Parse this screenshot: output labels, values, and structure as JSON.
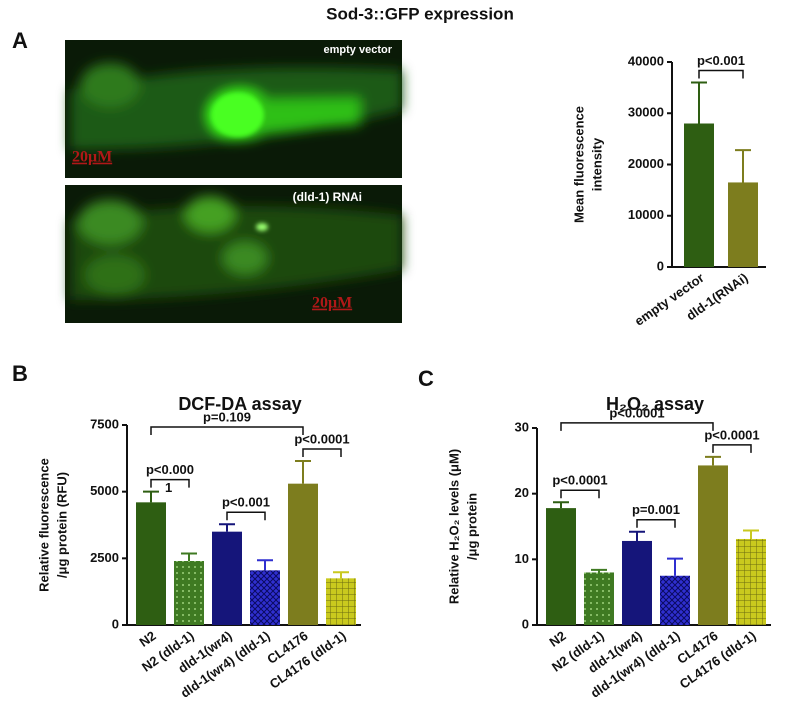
{
  "figure": {
    "title": "Sod-3::GFP expression",
    "panels": [
      "A",
      "B",
      "C"
    ],
    "images": [
      {
        "label": "empty vector",
        "scale": "20μM"
      },
      {
        "label": "(dld-1) RNAi",
        "scale": "20μM"
      }
    ]
  },
  "chart_data": [
    {
      "type": "bar",
      "ylabel": [
        "Mean fluorescence",
        "intensity"
      ],
      "categories": [
        "empty vector",
        "dld-1(RNAi)"
      ],
      "values": [
        28000,
        16500
      ],
      "errors": [
        8000,
        6300
      ],
      "colors": [
        "#2e5e12",
        "#7d7d1e"
      ],
      "patterns": [
        "none",
        "none"
      ],
      "ylim": [
        0,
        40000
      ],
      "yticks": [
        0,
        10000,
        20000,
        30000,
        40000
      ],
      "annotations": [
        {
          "text": [
            "p<0.001"
          ],
          "from": 0,
          "to": 1
        }
      ]
    },
    {
      "type": "bar",
      "title": "DCF-DA assay",
      "ylabel": [
        "Relative fluorescence",
        "/μg protein (RFU)"
      ],
      "categories": [
        "N2",
        "N2 (dld-1)",
        "dld-1(wr4)",
        "dld-1(wr4) (dld-1)",
        "CL4176",
        "CL4176 (dld-1)"
      ],
      "values": [
        4600,
        2400,
        3500,
        2050,
        5300,
        1750
      ],
      "errors": [
        400,
        280,
        280,
        380,
        850,
        230
      ],
      "colors": [
        "#2e5e12",
        "#3f7a22",
        "#15157a",
        "#2f2fd0",
        "#7d7d1e",
        "#c9c91e"
      ],
      "patterns": [
        "none",
        "dots",
        "none",
        "cross",
        "none",
        "grid"
      ],
      "ylim": [
        0,
        7500
      ],
      "yticks": [
        0,
        2500,
        5000,
        7500
      ],
      "annotations": [
        {
          "text": [
            "p=0.109"
          ],
          "from": 0,
          "to": 4
        },
        {
          "text": [
            "p<0.000",
            "1"
          ],
          "from": 0,
          "to": 1
        },
        {
          "text": [
            "p<0.001"
          ],
          "from": 2,
          "to": 3
        },
        {
          "text": [
            "p<0.0001"
          ],
          "from": 4,
          "to": 5
        }
      ]
    },
    {
      "type": "bar",
      "title": "H₂O₂ assay",
      "ylabel": [
        "Relative H₂O₂ levels (μM)",
        "/μg protein"
      ],
      "categories": [
        "N2",
        "N2 (dld-1)",
        "dld-1(wr4)",
        "dld-1(wr4) (dld-1)",
        "CL4176",
        "CL4176 (dld-1)"
      ],
      "values": [
        17.8,
        8.0,
        12.8,
        7.5,
        24.3,
        13.1
      ],
      "errors": [
        0.9,
        0.4,
        1.4,
        2.6,
        1.3,
        1.3
      ],
      "colors": [
        "#2e5e12",
        "#3f7a22",
        "#15157a",
        "#2f2fd0",
        "#7d7d1e",
        "#c9c91e"
      ],
      "patterns": [
        "none",
        "dots",
        "none",
        "cross",
        "none",
        "grid"
      ],
      "ylim": [
        0,
        30
      ],
      "yticks": [
        0,
        10,
        20,
        30
      ],
      "annotations": [
        {
          "text": [
            "p<0.0001"
          ],
          "from": 0,
          "to": 4
        },
        {
          "text": [
            "p<0.0001"
          ],
          "from": 0,
          "to": 1
        },
        {
          "text": [
            "p=0.001"
          ],
          "from": 2,
          "to": 3
        },
        {
          "text": [
            "p<0.0001"
          ],
          "from": 4,
          "to": 5
        }
      ]
    }
  ]
}
